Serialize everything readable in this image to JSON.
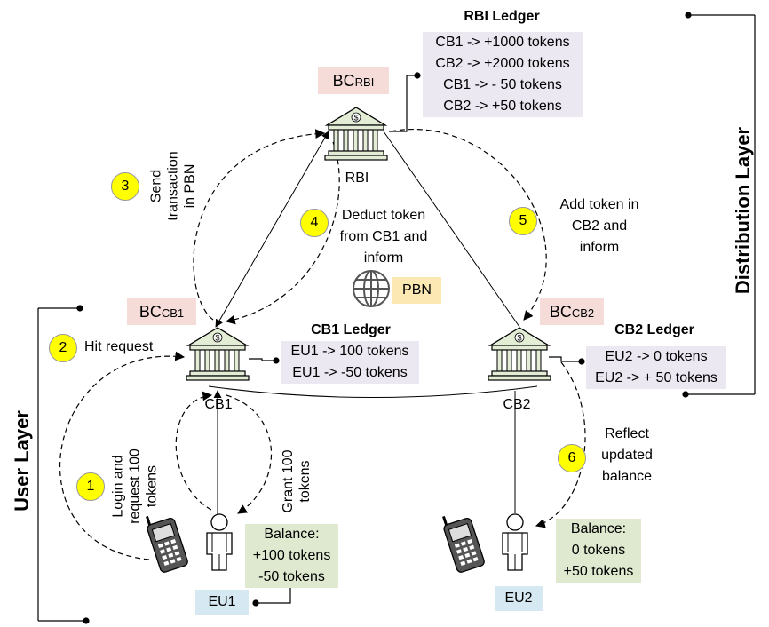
{
  "rbi_ledger": {
    "title": "RBI Ledger",
    "entries": [
      "CB1 -> +1000 tokens",
      "CB2 -> +2000 tokens",
      "CB1 -> - 50 tokens",
      "CB2 -> +50 tokens"
    ]
  },
  "bc_rbi": {
    "main": "BC",
    "sub": "RBI"
  },
  "bc_cb1": {
    "main": "BC",
    "sub": "CB1"
  },
  "bc_cb2": {
    "main": "BC",
    "sub": "CB2"
  },
  "rbi_label": "RBI",
  "cb1_label": "CB1",
  "cb2_label": "CB2",
  "cb1_ledger": {
    "title": "CB1 Ledger",
    "entries": [
      "EU1 -> 100 tokens",
      "EU1 -> -50 tokens"
    ]
  },
  "cb2_ledger": {
    "title": "CB2 Ledger",
    "entries": [
      "EU2 -> 0 tokens",
      "EU2 -> + 50 tokens"
    ]
  },
  "pbn_label": "PBN",
  "eu1_label": "EU1",
  "eu2_label": "EU2",
  "eu1_balance": [
    "Balance:",
    "+100 tokens",
    "-50 tokens"
  ],
  "eu2_balance": [
    "Balance:",
    "0 tokens",
    "+50 tokens"
  ],
  "steps": {
    "s1": {
      "num": "1",
      "text": [
        "Login and",
        "request 100",
        "tokens"
      ]
    },
    "s2": {
      "num": "2",
      "text": [
        "Hit request"
      ]
    },
    "s3": {
      "num": "3",
      "text": [
        "Send",
        "transaction",
        "in PBN"
      ]
    },
    "s4": {
      "num": "4",
      "text": [
        "Deduct token",
        "from CB1 and",
        "inform"
      ]
    },
    "s5": {
      "num": "5",
      "text": [
        "Add token in",
        "CB2 and",
        "inform"
      ]
    },
    "s6": {
      "num": "6",
      "text": [
        "Reflect",
        "updated",
        "balance"
      ]
    },
    "grant": {
      "text": [
        "Grant 100",
        "tokens"
      ]
    }
  },
  "layers": {
    "distribution": "Distribution Layer",
    "user": "User Layer"
  },
  "colors": {
    "ledger_bg": "#ece8f2",
    "balance_bg": "#dfe9cf",
    "bc_bg": "#f6dcd9",
    "eu_bg": "#d6e9f3",
    "pbn_bg": "#fbe8b3",
    "step_circle": "#ffff00",
    "bank_fill": "#e3edd6"
  },
  "icons": [
    "bank-icon",
    "globe-icon",
    "user-icon",
    "phone-icon"
  ]
}
